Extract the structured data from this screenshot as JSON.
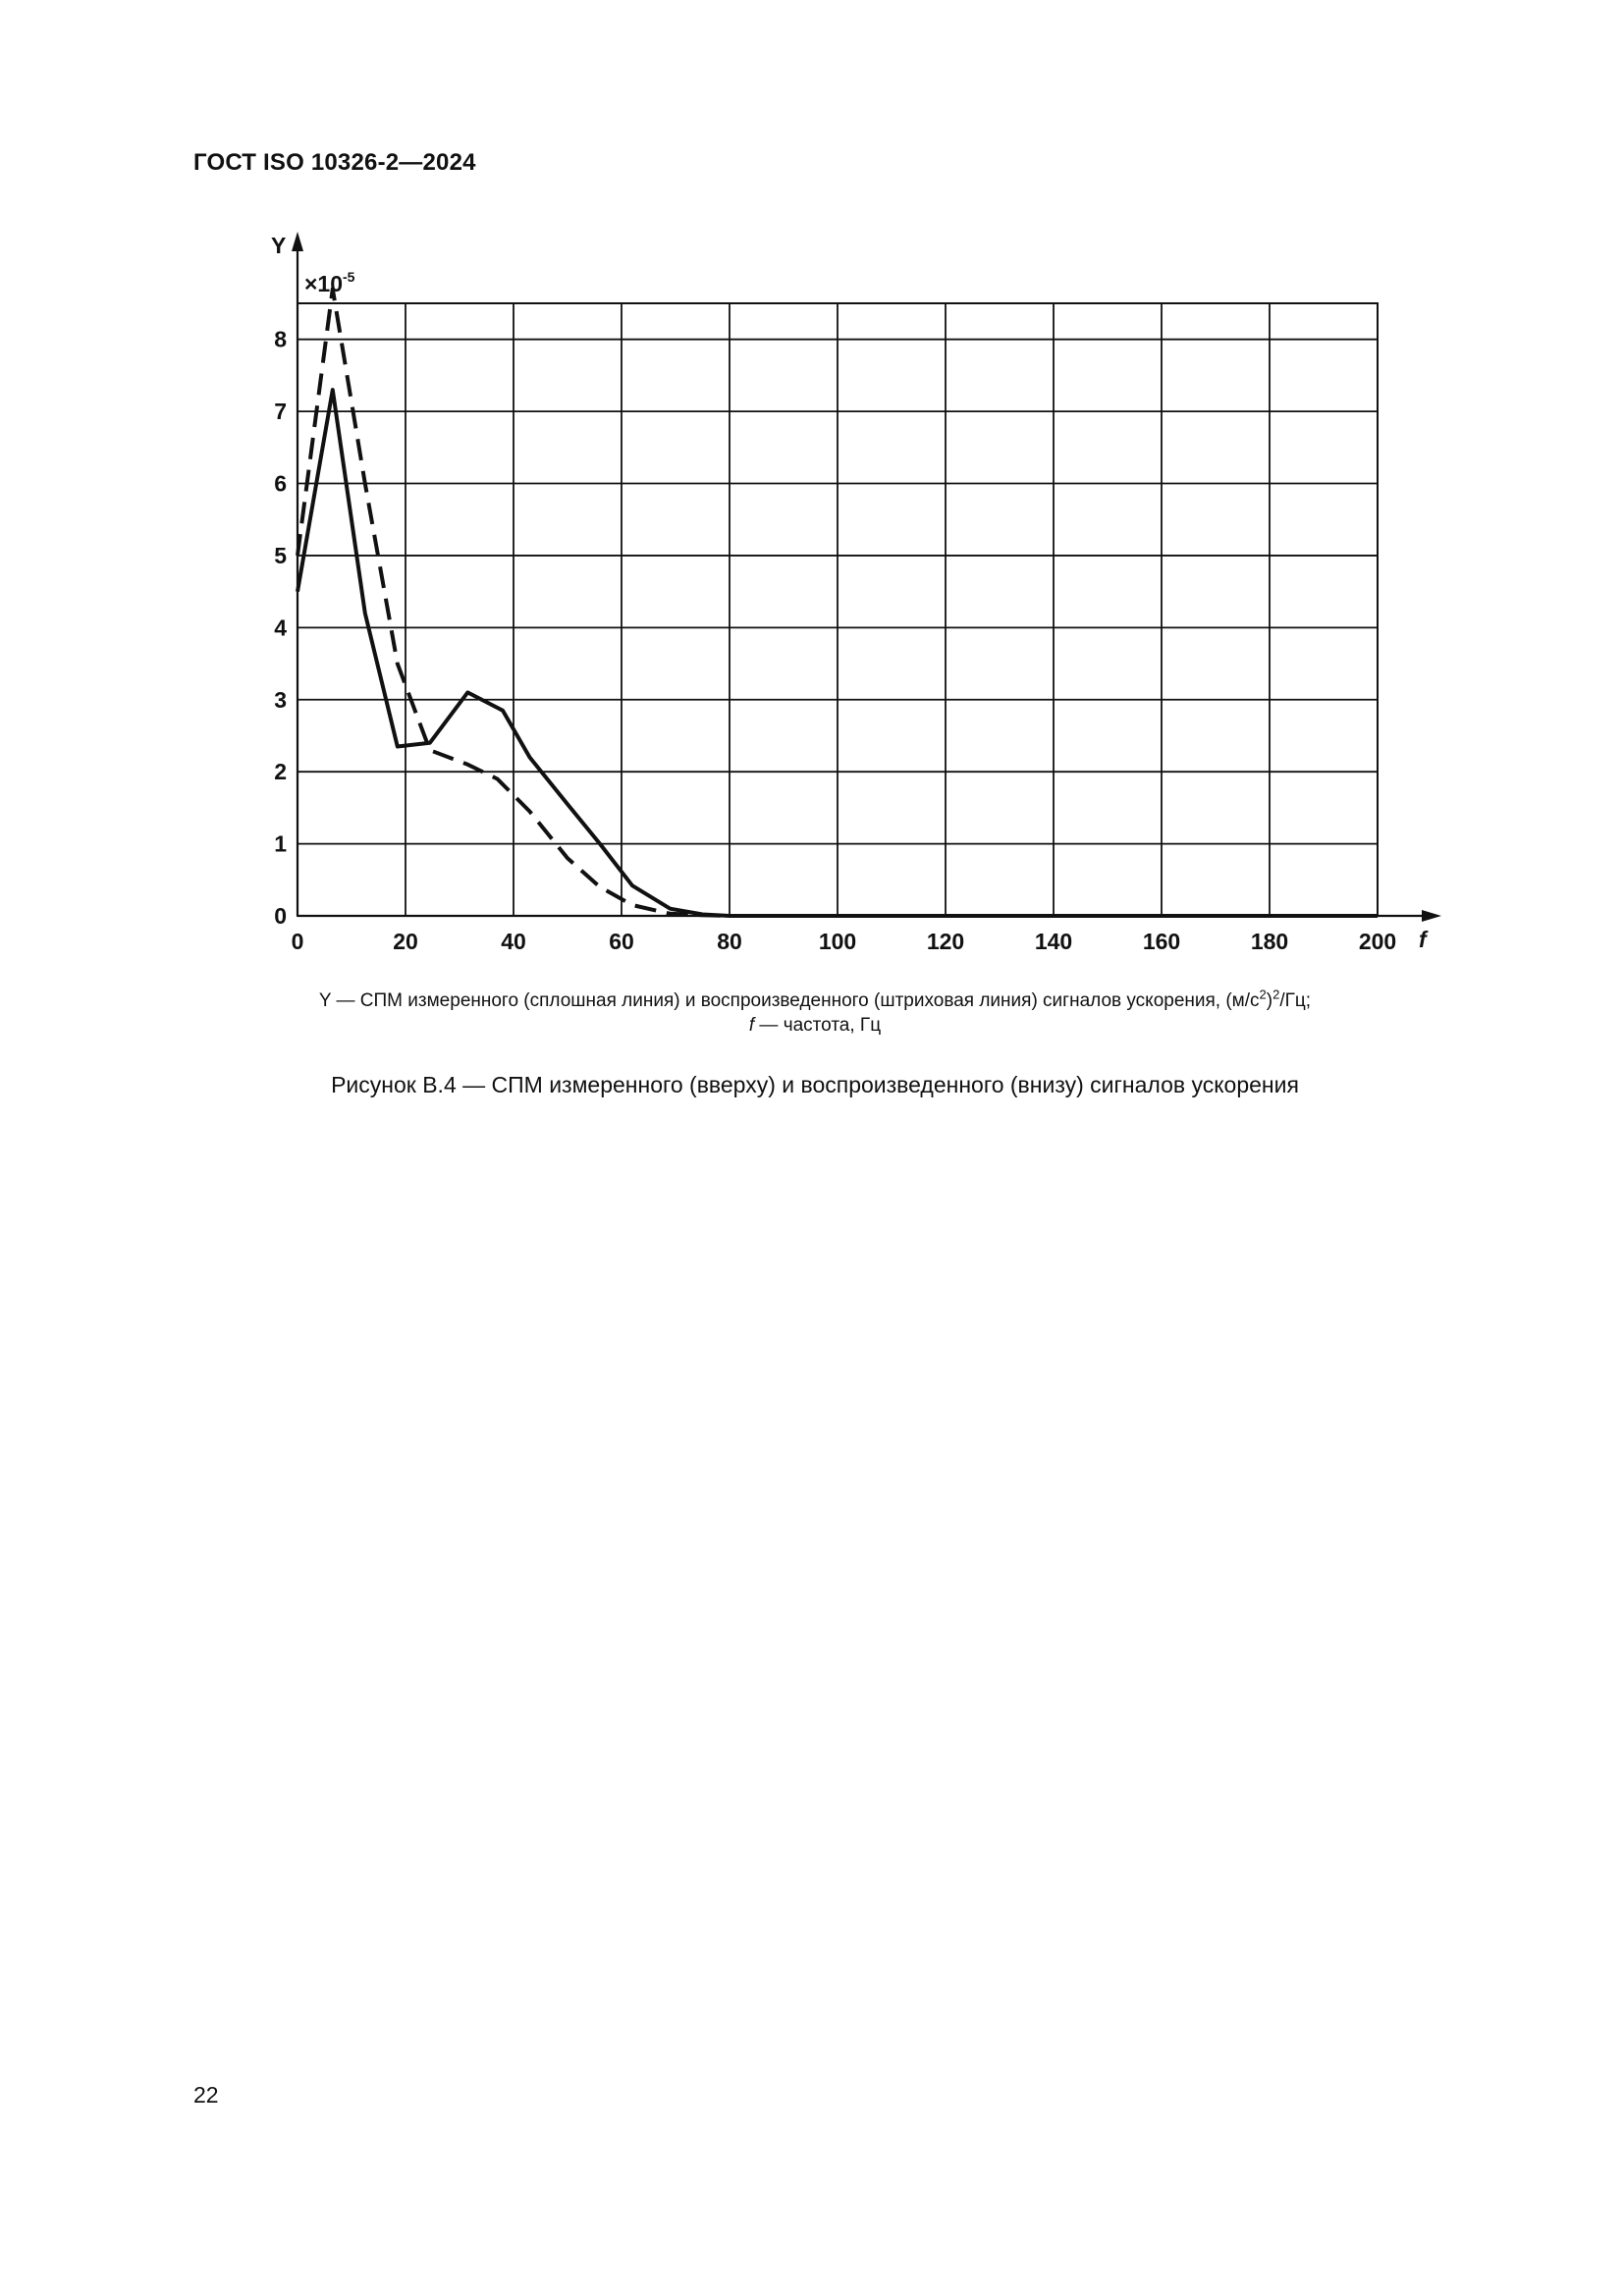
{
  "header": {
    "doc_id": "ГОСТ ISO 10326-2—2024"
  },
  "chart_data": {
    "type": "line",
    "ylabel": "Y",
    "xlabel": "f",
    "y_multiplier": "×10",
    "y_multiplier_exp": "-5",
    "xlim": [
      0,
      200
    ],
    "ylim": [
      0,
      8.5
    ],
    "x_ticks": [
      0,
      20,
      40,
      60,
      80,
      100,
      120,
      140,
      160,
      180,
      200
    ],
    "y_ticks": [
      0,
      1,
      2,
      3,
      4,
      5,
      6,
      7,
      8
    ],
    "grid": true,
    "series": [
      {
        "style": "solid",
        "color": "#111111",
        "x": [
          0,
          6.5,
          12.5,
          18.5,
          24.5,
          31.5,
          38,
          43,
          50,
          56,
          62,
          69,
          75,
          80,
          200
        ],
        "y": [
          4.5,
          7.3,
          4.2,
          2.35,
          2.4,
          3.1,
          2.85,
          2.2,
          1.55,
          1.0,
          0.42,
          0.1,
          0.02,
          0.0,
          0.0
        ]
      },
      {
        "style": "dashed",
        "color": "#111111",
        "x": [
          0,
          6.5,
          12.5,
          18.5,
          24.5,
          31.5,
          37,
          43,
          50,
          56,
          62,
          69,
          75,
          80,
          200
        ],
        "y": [
          5.0,
          8.7,
          6.0,
          3.5,
          2.3,
          2.1,
          1.9,
          1.45,
          0.8,
          0.4,
          0.15,
          0.03,
          0.01,
          0.0,
          0.0
        ]
      }
    ]
  },
  "legend": {
    "line1_a": "Y — СПМ измеренного (сплошная линия) и воспроизведенного (штриховая линия) сигналов ускорения, (м/с",
    "line1_sup1": "2",
    "line1_b": ")",
    "line1_sup2": "2",
    "line1_c": "/Гц;",
    "line2_f": "f",
    "line2_rest": " — частота, Гц"
  },
  "caption": "Рисунок B.4 — СПМ измеренного (вверху) и воспроизведенного (внизу) сигналов ускорения",
  "page_number": "22"
}
